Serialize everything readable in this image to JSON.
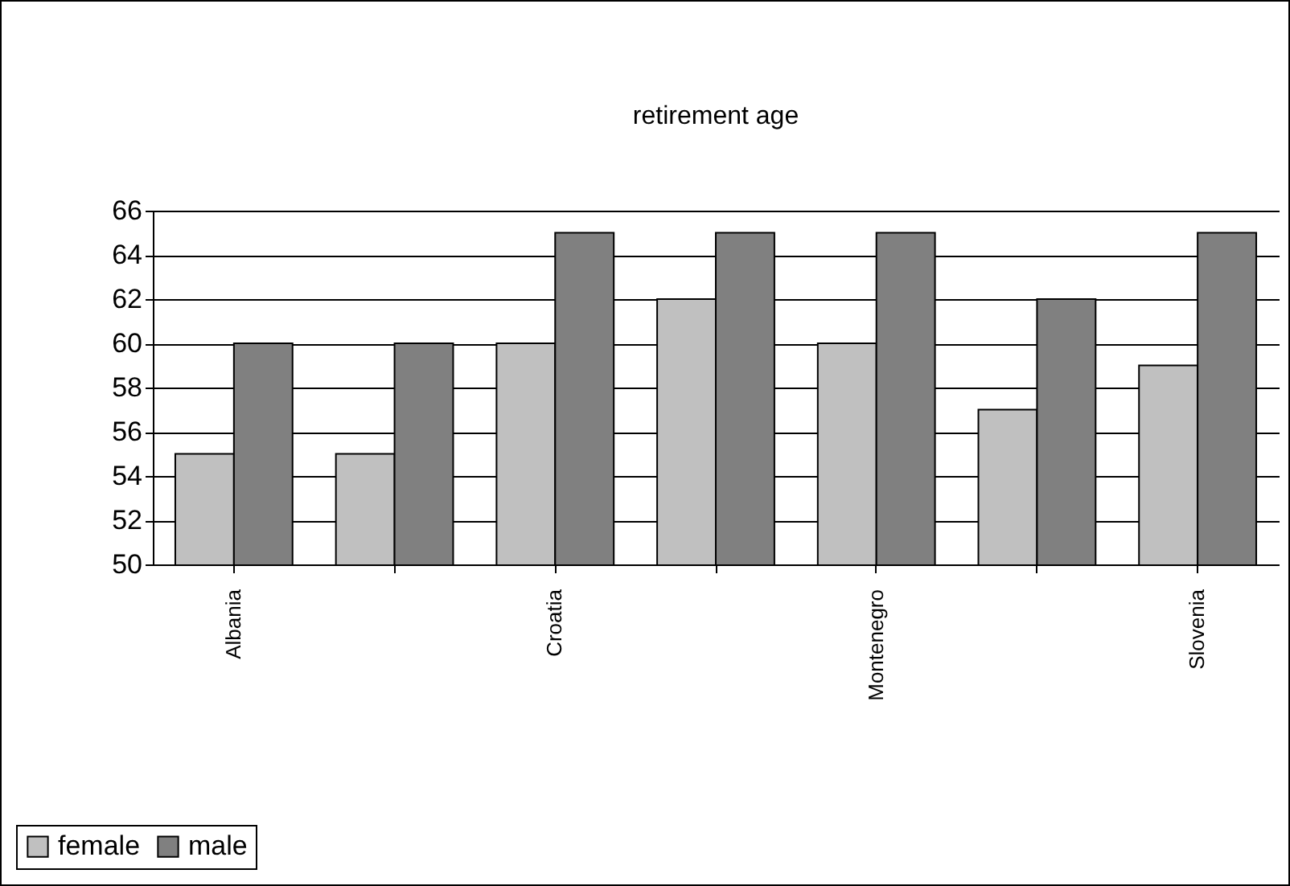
{
  "chart_data": {
    "type": "bar",
    "title": "retirement age",
    "categories": [
      "Albania",
      null,
      "Croatia",
      null,
      "Montenegro",
      null,
      "Slovenia"
    ],
    "series": [
      {
        "name": "female",
        "color": "#c0c0c0",
        "values": [
          55,
          55,
          60,
          62,
          60,
          57,
          59
        ]
      },
      {
        "name": "male",
        "color": "#808080",
        "values": [
          60,
          60,
          65,
          65,
          65,
          62,
          65
        ]
      }
    ],
    "ylim": [
      50,
      66
    ],
    "yticks": [
      50,
      52,
      54,
      56,
      58,
      60,
      62,
      64,
      66
    ],
    "grid": "y",
    "legend": "bottom left"
  }
}
